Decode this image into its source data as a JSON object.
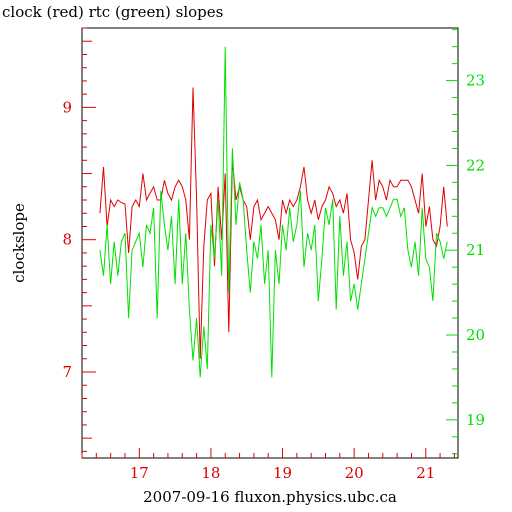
{
  "chart_data": {
    "type": "line",
    "title": "clock (red) rtc (green) slopes",
    "xlabel": "2007-09-16 fluxon.physics.ubc.ca",
    "ylabel": "clockslope",
    "xlim": [
      16.2,
      21.45
    ],
    "ylim_left": [
      6.35,
      9.6
    ],
    "ylim_right": [
      18.55,
      23.62
    ],
    "x_ticks": [
      17,
      18,
      19,
      20,
      21
    ],
    "y_ticks_left": [
      7,
      8,
      9
    ],
    "y_ticks_right": [
      19,
      20,
      21,
      22,
      23
    ],
    "grid": false,
    "colors": {
      "left_axis": "#e00000",
      "right_axis": "#00e000",
      "clock": "#e00000",
      "rtc": "#00e000"
    },
    "series": [
      {
        "axis": "left",
        "x": [
          16.45,
          16.5,
          16.55,
          16.6,
          16.65,
          16.7,
          16.75,
          16.8,
          16.85,
          16.9,
          16.95,
          17.0,
          17.05,
          17.1,
          17.15,
          17.2,
          17.25,
          17.3,
          17.35,
          17.4,
          17.45,
          17.5,
          17.55,
          17.6,
          17.65,
          17.7,
          17.75,
          17.8,
          17.85,
          17.9,
          17.95,
          18.0,
          18.05,
          18.1,
          18.15,
          18.2,
          18.25,
          18.3,
          18.35,
          18.4,
          18.45,
          18.5,
          18.55,
          18.6,
          18.65,
          18.7,
          18.75,
          18.8,
          18.85,
          18.9,
          18.95,
          19.0,
          19.05,
          19.1,
          19.15,
          19.2,
          19.25,
          19.3,
          19.35,
          19.4,
          19.45,
          19.5,
          19.55,
          19.6,
          19.65,
          19.7,
          19.75,
          19.8,
          19.85,
          19.9,
          19.95,
          20.0,
          20.05,
          20.1,
          20.15,
          20.2,
          20.25,
          20.3,
          20.35,
          20.4,
          20.45,
          20.5,
          20.55,
          20.6,
          20.65,
          20.7,
          20.75,
          20.8,
          20.85,
          20.9,
          20.95,
          21.0,
          21.05,
          21.1,
          21.15,
          21.2,
          21.25,
          21.3
        ],
        "y": [
          8.2,
          8.55,
          8.1,
          8.3,
          8.25,
          8.3,
          8.28,
          8.27,
          7.9,
          8.25,
          8.3,
          8.25,
          8.5,
          8.3,
          8.35,
          8.4,
          8.3,
          8.3,
          8.45,
          8.35,
          8.3,
          8.4,
          8.45,
          8.4,
          8.3,
          8.0,
          9.15,
          8.3,
          7.1,
          7.95,
          8.3,
          8.35,
          7.8,
          8.4,
          8.0,
          8.5,
          7.3,
          8.6,
          8.3,
          8.4,
          8.3,
          8.25,
          8.0,
          8.25,
          8.3,
          8.15,
          8.2,
          8.25,
          8.2,
          8.15,
          8.0,
          8.3,
          8.2,
          8.3,
          8.25,
          8.3,
          8.4,
          8.55,
          8.3,
          8.2,
          8.3,
          8.15,
          8.25,
          8.3,
          8.4,
          8.35,
          8.25,
          8.3,
          8.2,
          8.35,
          8.0,
          7.9,
          7.7,
          7.95,
          8.0,
          8.3,
          8.6,
          8.3,
          8.45,
          8.4,
          8.3,
          8.45,
          8.4,
          8.4,
          8.45,
          8.45,
          8.45,
          8.4,
          8.3,
          8.2,
          8.5,
          8.1,
          8.25,
          8.0,
          7.95,
          8.1,
          8.4,
          8.1
        ]
      },
      {
        "axis": "right",
        "x": [
          16.45,
          16.5,
          16.55,
          16.6,
          16.65,
          16.7,
          16.75,
          16.8,
          16.85,
          16.9,
          16.95,
          17.0,
          17.05,
          17.1,
          17.15,
          17.2,
          17.25,
          17.3,
          17.35,
          17.4,
          17.45,
          17.5,
          17.55,
          17.6,
          17.65,
          17.7,
          17.75,
          17.8,
          17.85,
          17.9,
          17.95,
          18.0,
          18.05,
          18.1,
          18.15,
          18.2,
          18.25,
          18.3,
          18.35,
          18.4,
          18.45,
          18.5,
          18.55,
          18.6,
          18.65,
          18.7,
          18.75,
          18.8,
          18.85,
          18.9,
          18.95,
          19.0,
          19.05,
          19.1,
          19.15,
          19.2,
          19.25,
          19.3,
          19.35,
          19.4,
          19.45,
          19.5,
          19.55,
          19.6,
          19.65,
          19.7,
          19.75,
          19.8,
          19.85,
          19.9,
          19.95,
          20.0,
          20.05,
          20.1,
          20.15,
          20.2,
          20.25,
          20.3,
          20.35,
          20.4,
          20.45,
          20.5,
          20.55,
          20.6,
          20.65,
          20.7,
          20.75,
          20.8,
          20.85,
          20.9,
          20.95,
          21.0,
          21.05,
          21.1,
          21.15,
          21.2,
          21.25,
          21.3
        ],
        "y": [
          21.0,
          20.7,
          21.3,
          20.6,
          21.1,
          20.7,
          21.1,
          21.2,
          20.2,
          21.0,
          21.1,
          21.2,
          20.8,
          21.3,
          21.2,
          21.5,
          20.2,
          21.7,
          21.3,
          21.0,
          21.4,
          20.6,
          21.6,
          20.6,
          21.2,
          20.3,
          19.7,
          20.2,
          19.5,
          20.1,
          19.6,
          21.3,
          20.9,
          21.6,
          20.7,
          23.4,
          20.5,
          22.2,
          21.3,
          21.8,
          21.6,
          21.0,
          20.5,
          21.1,
          20.9,
          21.3,
          20.6,
          21.0,
          19.5,
          21.0,
          20.6,
          21.3,
          21.0,
          21.5,
          21.1,
          21.3,
          21.7,
          20.8,
          21.2,
          21.0,
          21.3,
          20.4,
          20.9,
          21.5,
          21.3,
          21.6,
          20.3,
          21.4,
          20.7,
          21.1,
          20.4,
          20.6,
          20.3,
          20.6,
          20.9,
          21.2,
          21.5,
          21.4,
          21.5,
          21.5,
          21.4,
          21.5,
          21.6,
          21.6,
          21.4,
          21.5,
          21.0,
          20.8,
          21.1,
          20.7,
          21.5,
          20.9,
          20.8,
          20.4,
          21.2,
          21.1,
          20.9,
          21.1
        ]
      }
    ]
  }
}
